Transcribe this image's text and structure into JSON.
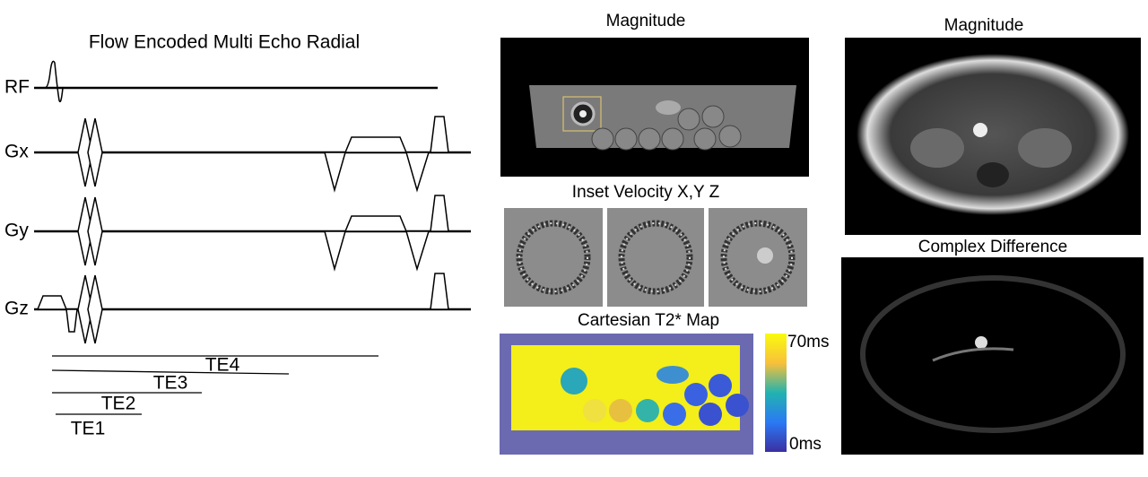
{
  "sequence": {
    "title": "Flow Encoded Multi Echo Radial",
    "axes": [
      "RF",
      "Gx",
      "Gy",
      "Gz"
    ],
    "echo_times": [
      "TE1",
      "TE2",
      "TE3",
      "TE4"
    ]
  },
  "phantom": {
    "magnitude_title": "Magnitude",
    "velocity_title": "Inset Velocity X,Y Z",
    "t2_title": "Cartesian T2* Map",
    "colorbar_max": "70ms",
    "colorbar_min": "0ms"
  },
  "abdomen": {
    "magnitude_title": "Magnitude",
    "difference_title": "Complex Difference"
  }
}
